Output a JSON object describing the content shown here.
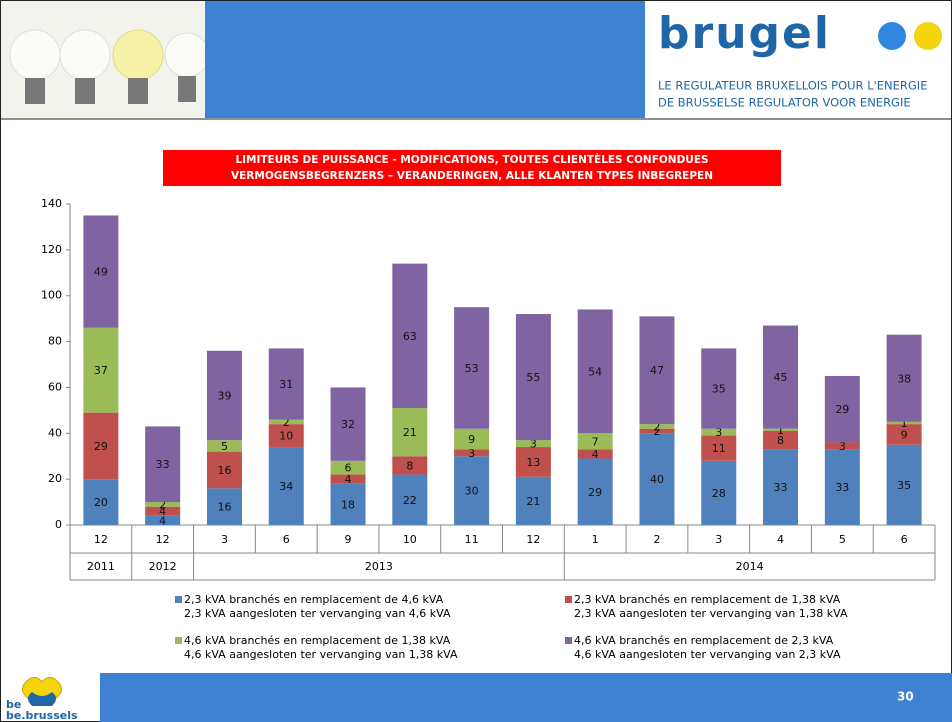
{
  "header": {
    "logo": "brugel",
    "tagline_fr": "LE REGULATEUR BRUXELLOIS POUR L'ENERGIE",
    "tagline_nl": "DE BRUSSELSE REGULATOR VOOR ENERGIE"
  },
  "chart_data": {
    "type": "stacked_bar",
    "title": "LIMITEURS DE PUISSANCE - MODIFICATIONS, TOUTES CLIENTÈLES CONFONDUES",
    "subtitle": "VERMOGENSBEGRENZERS – VERANDERINGEN, ALLE KLANTEN TYPES INBEGREPEN",
    "categories": [
      "12",
      "12",
      "3",
      "6",
      "9",
      "10",
      "11",
      "12",
      "1",
      "2",
      "3",
      "4",
      "5",
      "6"
    ],
    "groups": [
      {
        "label": "2011",
        "size": 1
      },
      {
        "label": "2012",
        "size": 1
      },
      {
        "label": "2013",
        "size": 6
      },
      {
        "label": "2014",
        "size": 6
      }
    ],
    "series": [
      {
        "name": "2,3 kVA branchés en remplacement de 4,6 kVA",
        "name_nl": "2,3 kVA aangesloten ter vervanging van 4,6 kVA",
        "color": "#4f81bd",
        "values": [
          20,
          4,
          16,
          34,
          18,
          22,
          30,
          21,
          29,
          40,
          28,
          33,
          33,
          35
        ]
      },
      {
        "name": "2,3 kVA branchés en remplacement de 1,38 kVA",
        "name_nl": "2,3 kVA aangesloten ter vervanging van 1,38 kVA",
        "color": "#c0504d",
        "values": [
          29,
          4,
          16,
          10,
          4,
          8,
          3,
          13,
          4,
          2,
          11,
          8,
          3,
          9
        ]
      },
      {
        "name": "4,6 kVA branchés en remplacement de 1,38 kVA",
        "name_nl": "4,6 kVA aangesloten ter vervanging van 1,38 kVA",
        "color": "#9bbb59",
        "values": [
          37,
          2,
          5,
          2,
          6,
          21,
          9,
          3,
          7,
          2,
          3,
          1,
          null,
          1
        ]
      },
      {
        "name": "4,6 kVA branchés en remplacement de 2,3 kVA",
        "name_nl": "4,6 kVA aangesloten ter vervanging van 2,3 kVA",
        "color": "#8064a2",
        "values": [
          49,
          33,
          39,
          31,
          32,
          63,
          53,
          55,
          54,
          47,
          35,
          45,
          29,
          38
        ]
      }
    ],
    "ylim": [
      0,
      140
    ],
    "yticks": [
      0,
      20,
      40,
      60,
      80,
      100,
      120,
      140
    ],
    "grid": false
  },
  "footer": {
    "logo_top": "be",
    "logo_bottom": "be.brussels",
    "page_number": "30"
  }
}
